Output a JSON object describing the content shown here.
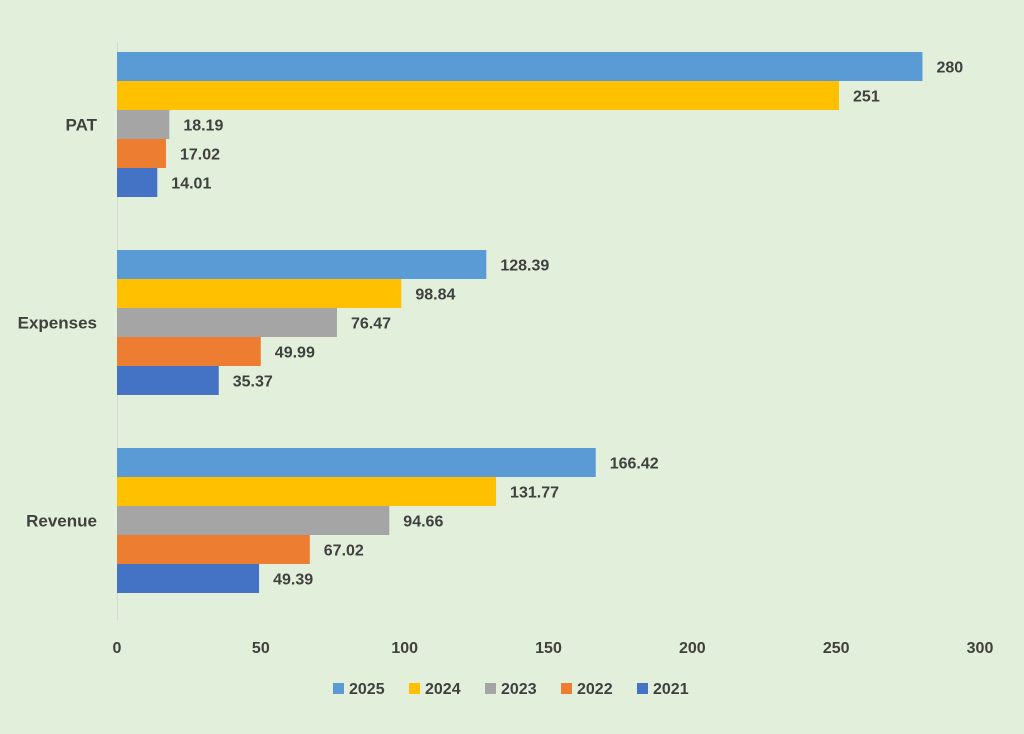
{
  "chart_data": {
    "type": "bar",
    "orientation": "horizontal",
    "categories": [
      "PAT",
      "Expenses",
      "Revenue"
    ],
    "series": [
      {
        "name": "2025",
        "color": "#5b9bd5",
        "values": [
          280,
          128.39,
          166.42
        ],
        "labels": [
          "280",
          "128.39",
          "166.42"
        ]
      },
      {
        "name": "2024",
        "color": "#ffc000",
        "values": [
          251,
          98.84,
          131.77
        ],
        "labels": [
          "251",
          "98.84",
          "131.77"
        ]
      },
      {
        "name": "2023",
        "color": "#a5a5a5",
        "values": [
          18.19,
          76.47,
          94.66
        ],
        "labels": [
          "18.19",
          "76.47",
          "94.66"
        ]
      },
      {
        "name": "2022",
        "color": "#ed7d31",
        "values": [
          17.02,
          49.99,
          67.02
        ],
        "labels": [
          "17.02",
          "49.99",
          "67.02"
        ]
      },
      {
        "name": "2021",
        "color": "#4472c4",
        "values": [
          14.01,
          35.37,
          49.39
        ],
        "labels": [
          "14.01",
          "35.37",
          "49.39"
        ]
      }
    ],
    "xlim": [
      0,
      300
    ],
    "ticks": [
      "0",
      "50",
      "100",
      "150",
      "200",
      "250",
      "300"
    ],
    "tick_values": [
      0,
      50,
      100,
      150,
      200,
      250,
      300
    ],
    "legend_position": "bottom",
    "grid": false,
    "title": "",
    "xlabel": "",
    "ylabel": ""
  }
}
